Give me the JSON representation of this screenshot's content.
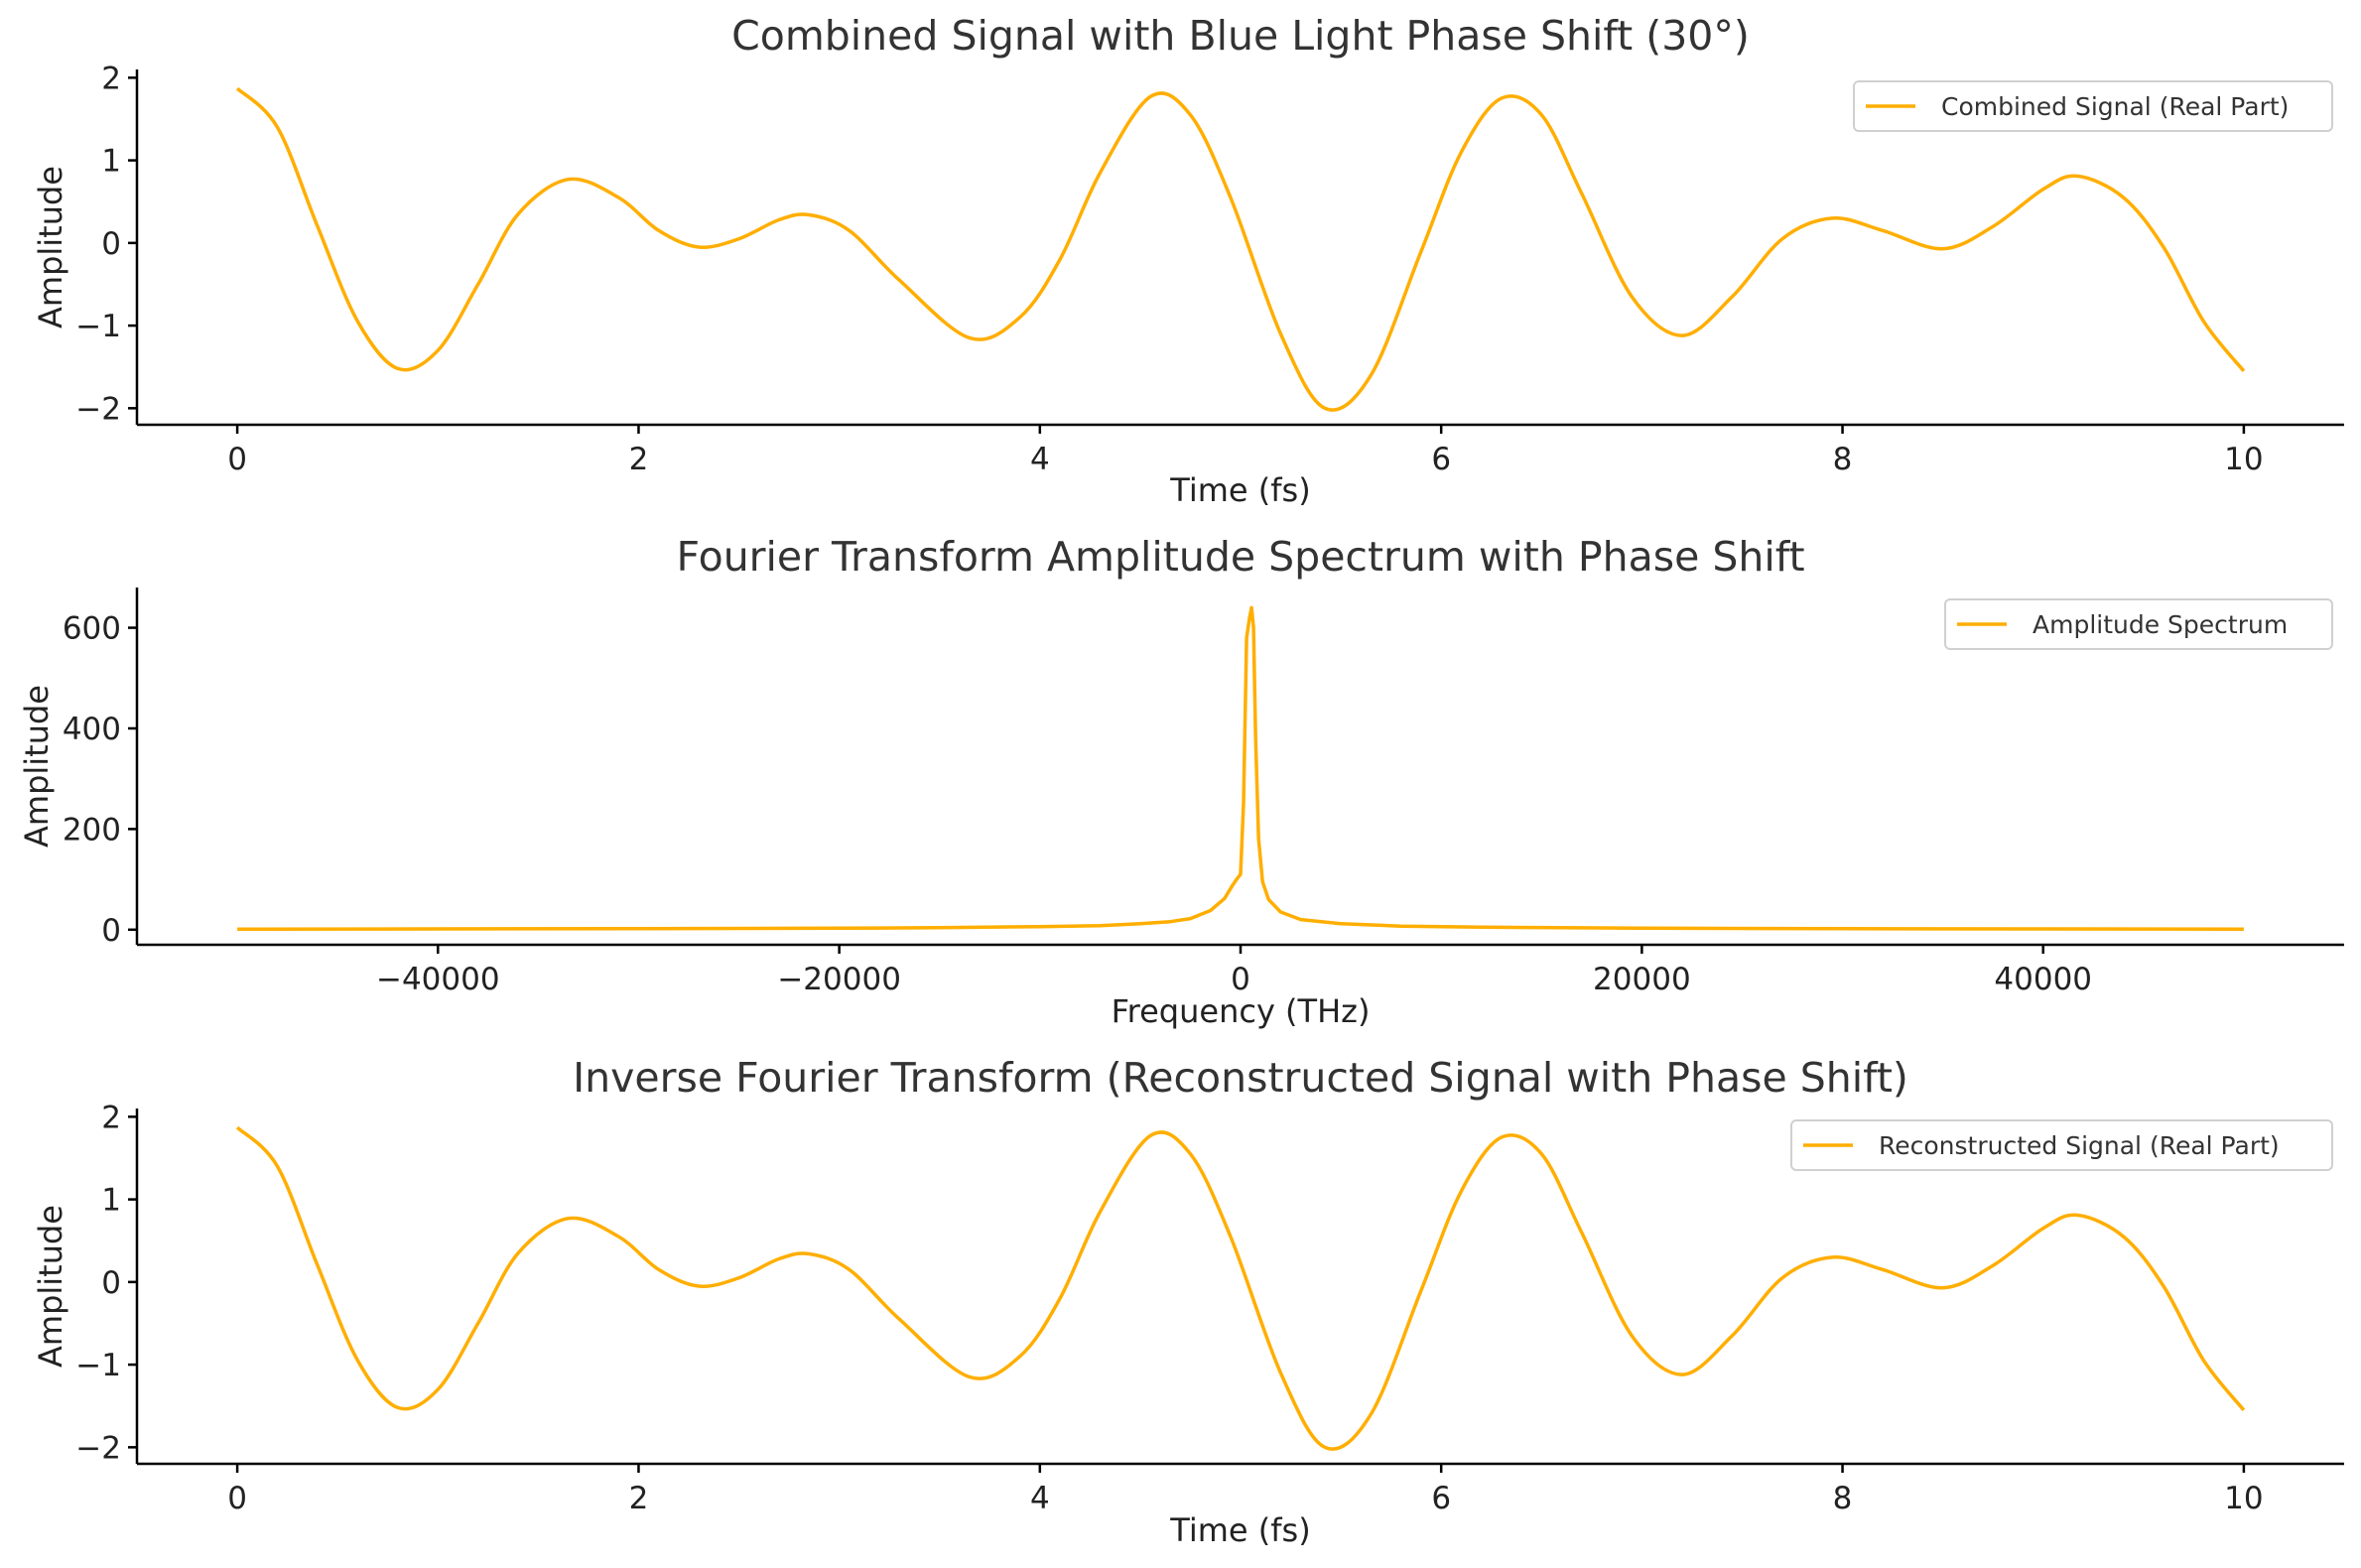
{
  "colors": {
    "series": "#FFAE00"
  },
  "chart_data": [
    {
      "type": "line",
      "title": "Combined Signal with Blue Light Phase Shift (30°)",
      "xlabel": "Time (fs)",
      "ylabel": "Amplitude",
      "xlim": [
        -0.5,
        10.5
      ],
      "ylim": [
        -2.2,
        2.1
      ],
      "xticks": [
        0,
        2,
        4,
        6,
        8,
        10
      ],
      "xtick_labels": [
        "0",
        "2",
        "4",
        "6",
        "8",
        "10"
      ],
      "yticks": [
        -2,
        -1,
        0,
        1,
        2
      ],
      "ytick_labels": [
        "−2",
        "−1",
        "0",
        "1",
        "2"
      ],
      "legend_position": "top-right",
      "series": [
        {
          "name": "Combined Signal (Real Part)",
          "x": [
            0,
            0.2,
            0.4,
            0.6,
            0.8,
            1.0,
            1.2,
            1.4,
            1.65,
            1.9,
            2.1,
            2.3,
            2.5,
            2.7,
            2.85,
            3.05,
            3.3,
            3.65,
            3.9,
            4.1,
            4.3,
            4.55,
            4.75,
            4.95,
            5.2,
            5.42,
            5.65,
            5.9,
            6.1,
            6.3,
            6.5,
            6.7,
            6.95,
            7.2,
            7.45,
            7.7,
            7.95,
            8.2,
            8.5,
            8.75,
            9.0,
            9.17,
            9.4,
            9.6,
            9.8,
            10.0
          ],
          "y": [
            1.87,
            1.4,
            0.2,
            -0.95,
            -1.52,
            -1.3,
            -0.5,
            0.35,
            0.77,
            0.55,
            0.15,
            -0.05,
            0.05,
            0.28,
            0.34,
            0.15,
            -0.45,
            -1.15,
            -0.9,
            -0.2,
            0.85,
            1.77,
            1.55,
            0.55,
            -1.1,
            -2.0,
            -1.6,
            -0.1,
            1.1,
            1.75,
            1.55,
            0.6,
            -0.65,
            -1.12,
            -0.65,
            0.05,
            0.3,
            0.15,
            -0.07,
            0.2,
            0.65,
            0.81,
            0.55,
            -0.05,
            -0.95,
            -1.55
          ]
        }
      ]
    },
    {
      "type": "line",
      "title": "Fourier Transform Amplitude Spectrum with Phase Shift",
      "xlabel": "Frequency (THz)",
      "ylabel": "Amplitude",
      "xlim": [
        -55000,
        55000
      ],
      "ylim": [
        -30,
        680
      ],
      "xticks": [
        -40000,
        -20000,
        0,
        20000,
        40000
      ],
      "xtick_labels": [
        "−40000",
        "−20000",
        "0",
        "20000",
        "40000"
      ],
      "yticks": [
        0,
        200,
        400,
        600
      ],
      "ytick_labels": [
        "0",
        "200",
        "400",
        "600"
      ],
      "legend_position": "top-right",
      "series": [
        {
          "name": "Amplitude Spectrum",
          "x": [
            -50000,
            -40000,
            -30000,
            -20000,
            -15000,
            -10000,
            -7000,
            -5000,
            -3500,
            -2500,
            -1500,
            -800,
            -400,
            -200,
            0,
            150,
            300,
            450,
            550,
            650,
            750,
            900,
            1100,
            1400,
            2000,
            3000,
            5000,
            8000,
            12000,
            20000,
            30000,
            40000,
            50000
          ],
          "y": [
            1,
            1.5,
            2,
            3,
            4,
            6,
            8,
            12,
            16,
            22,
            38,
            62,
            88,
            100,
            110,
            250,
            580,
            620,
            640,
            600,
            380,
            180,
            95,
            60,
            35,
            20,
            12,
            7,
            5,
            3,
            2,
            1.5,
            1
          ]
        }
      ]
    },
    {
      "type": "line",
      "title": "Inverse Fourier Transform (Reconstructed Signal with Phase Shift)",
      "xlabel": "Time (fs)",
      "ylabel": "Amplitude",
      "xlim": [
        -0.5,
        10.5
      ],
      "ylim": [
        -2.2,
        2.1
      ],
      "xticks": [
        0,
        2,
        4,
        6,
        8,
        10
      ],
      "xtick_labels": [
        "0",
        "2",
        "4",
        "6",
        "8",
        "10"
      ],
      "yticks": [
        -2,
        -1,
        0,
        1,
        2
      ],
      "ytick_labels": [
        "−2",
        "−1",
        "0",
        "1",
        "2"
      ],
      "legend_position": "top-right",
      "series": [
        {
          "name": "Reconstructed Signal (Real Part)",
          "x": [
            0,
            0.2,
            0.4,
            0.6,
            0.8,
            1.0,
            1.2,
            1.4,
            1.65,
            1.9,
            2.1,
            2.3,
            2.5,
            2.7,
            2.85,
            3.05,
            3.3,
            3.65,
            3.9,
            4.1,
            4.3,
            4.55,
            4.75,
            4.95,
            5.2,
            5.42,
            5.65,
            5.9,
            6.1,
            6.3,
            6.5,
            6.7,
            6.95,
            7.2,
            7.45,
            7.7,
            7.95,
            8.2,
            8.5,
            8.75,
            9.0,
            9.17,
            9.4,
            9.6,
            9.8,
            10.0
          ],
          "y": [
            1.87,
            1.4,
            0.2,
            -0.95,
            -1.52,
            -1.3,
            -0.5,
            0.35,
            0.77,
            0.55,
            0.15,
            -0.05,
            0.05,
            0.28,
            0.34,
            0.15,
            -0.45,
            -1.15,
            -0.9,
            -0.2,
            0.85,
            1.77,
            1.55,
            0.55,
            -1.1,
            -2.0,
            -1.6,
            -0.1,
            1.1,
            1.75,
            1.55,
            0.6,
            -0.65,
            -1.12,
            -0.65,
            0.05,
            0.3,
            0.15,
            -0.07,
            0.2,
            0.65,
            0.81,
            0.55,
            -0.05,
            -0.95,
            -1.55
          ]
        }
      ]
    }
  ]
}
